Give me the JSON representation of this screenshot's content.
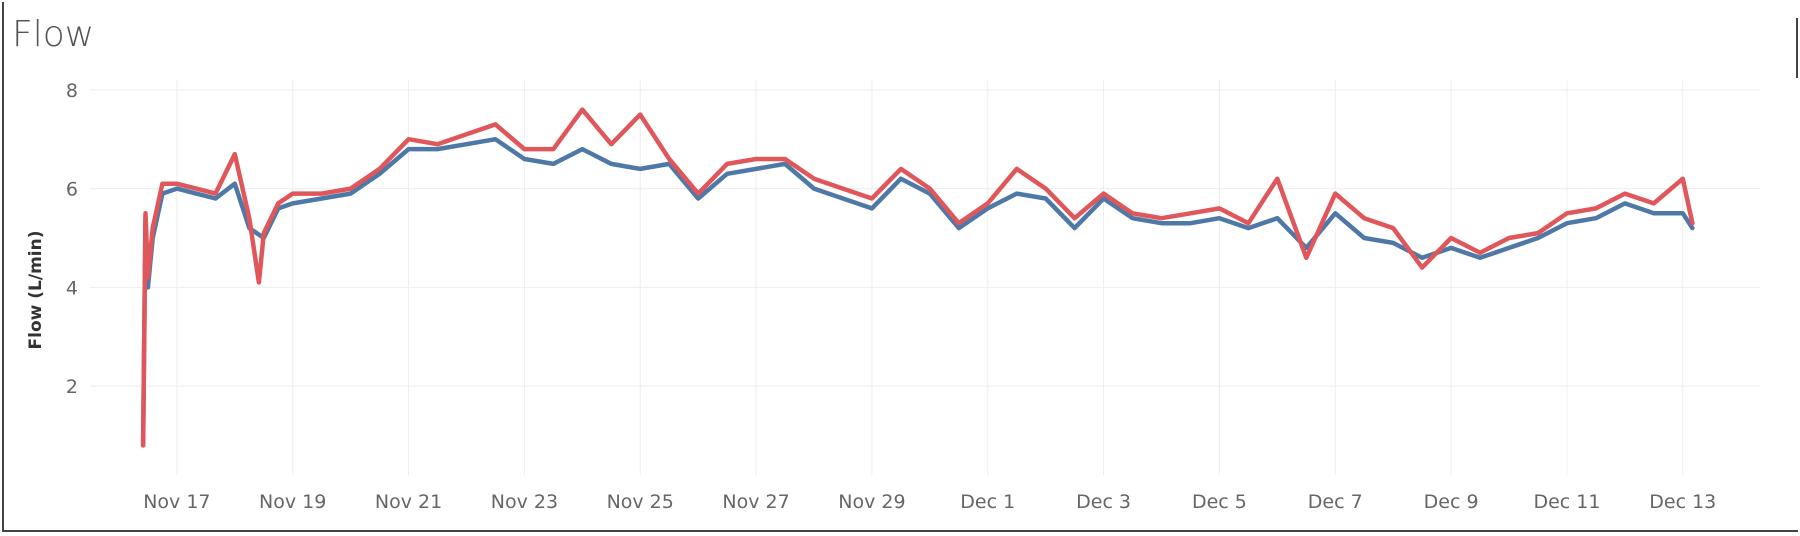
{
  "window": {
    "title": "Flow"
  },
  "colors": {
    "series_red": "#e0575b",
    "series_blue": "#4e79a7",
    "grid": "#eeeeee",
    "text": "#666666"
  },
  "chart_data": {
    "type": "line",
    "title": "Flow",
    "ylabel": "Flow (L/min)",
    "xlabel": "",
    "ylim": [
      0.2,
      8.2
    ],
    "yticks": [
      2,
      4,
      6,
      8
    ],
    "xlim": [
      "2023-11-15T12:00",
      "2023-12-14T08:00"
    ],
    "xticks": [
      {
        "date": "2023-11-17",
        "label": "Nov 17"
      },
      {
        "date": "2023-11-19",
        "label": "Nov 19"
      },
      {
        "date": "2023-11-21",
        "label": "Nov 21"
      },
      {
        "date": "2023-11-23",
        "label": "Nov 23"
      },
      {
        "date": "2023-11-25",
        "label": "Nov 25"
      },
      {
        "date": "2023-11-27",
        "label": "Nov 27"
      },
      {
        "date": "2023-11-29",
        "label": "Nov 29"
      },
      {
        "date": "2023-12-01",
        "label": "Dec 1"
      },
      {
        "date": "2023-12-03",
        "label": "Dec 3"
      },
      {
        "date": "2023-12-05",
        "label": "Dec 5"
      },
      {
        "date": "2023-12-07",
        "label": "Dec 7"
      },
      {
        "date": "2023-12-09",
        "label": "Dec 9"
      },
      {
        "date": "2023-12-11",
        "label": "Dec 11"
      },
      {
        "date": "2023-12-13",
        "label": "Dec 13"
      }
    ],
    "grid": true,
    "series": [
      {
        "color": "#4e79a7",
        "x": [
          "2023-11-16T10:00",
          "2023-11-16T11:00",
          "2023-11-16T12:00",
          "2023-11-16T14:00",
          "2023-11-16T18:00",
          "2023-11-17T00:00",
          "2023-11-17T08:00",
          "2023-11-17T16:00",
          "2023-11-18T00:00",
          "2023-11-18T06:00",
          "2023-11-18T12:00",
          "2023-11-18T18:00",
          "2023-11-19T00:00",
          "2023-11-19T12:00",
          "2023-11-20T00:00",
          "2023-11-20T12:00",
          "2023-11-21T00:00",
          "2023-11-21T12:00",
          "2023-11-22T00:00",
          "2023-11-22T12:00",
          "2023-11-23T00:00",
          "2023-11-23T12:00",
          "2023-11-24T00:00",
          "2023-11-24T12:00",
          "2023-11-25T00:00",
          "2023-11-25T12:00",
          "2023-11-26T00:00",
          "2023-11-26T12:00",
          "2023-11-27T00:00",
          "2023-11-27T12:00",
          "2023-11-28T00:00",
          "2023-11-28T12:00",
          "2023-11-29T00:00",
          "2023-11-29T12:00",
          "2023-11-30T00:00",
          "2023-11-30T12:00",
          "2023-12-01T00:00",
          "2023-12-01T12:00",
          "2023-12-02T00:00",
          "2023-12-02T12:00",
          "2023-12-03T00:00",
          "2023-12-03T12:00",
          "2023-12-04T00:00",
          "2023-12-04T12:00",
          "2023-12-05T00:00",
          "2023-12-05T12:00",
          "2023-12-06T00:00",
          "2023-12-06T12:00",
          "2023-12-07T00:00",
          "2023-12-07T12:00",
          "2023-12-08T00:00",
          "2023-12-08T12:00",
          "2023-12-09T00:00",
          "2023-12-09T12:00",
          "2023-12-10T00:00",
          "2023-12-10T12:00",
          "2023-12-11T00:00",
          "2023-12-11T12:00",
          "2023-12-12T00:00",
          "2023-12-12T12:00",
          "2023-12-13T00:00",
          "2023-12-13T04:00"
        ],
        "y": [
          0.8,
          5.4,
          4.0,
          5.0,
          5.9,
          6.0,
          5.9,
          5.8,
          6.1,
          5.2,
          5.0,
          5.6,
          5.7,
          5.8,
          5.9,
          6.3,
          6.8,
          6.8,
          6.9,
          7.0,
          6.6,
          6.5,
          6.8,
          6.5,
          6.4,
          6.5,
          5.8,
          6.3,
          6.4,
          6.5,
          6.0,
          5.8,
          5.6,
          6.2,
          5.9,
          5.2,
          5.6,
          5.9,
          5.8,
          5.2,
          5.8,
          5.4,
          5.3,
          5.3,
          5.4,
          5.2,
          5.4,
          4.8,
          5.5,
          5.0,
          4.9,
          4.6,
          4.8,
          4.6,
          4.8,
          5.0,
          5.3,
          5.4,
          5.7,
          5.5,
          5.5,
          5.2
        ]
      },
      {
        "color": "#e0575b",
        "x": [
          "2023-11-16T10:00",
          "2023-11-16T11:00",
          "2023-11-16T12:00",
          "2023-11-16T14:00",
          "2023-11-16T18:00",
          "2023-11-17T00:00",
          "2023-11-17T08:00",
          "2023-11-17T16:00",
          "2023-11-18T00:00",
          "2023-11-18T06:00",
          "2023-11-18T10:00",
          "2023-11-18T12:00",
          "2023-11-18T18:00",
          "2023-11-19T00:00",
          "2023-11-19T12:00",
          "2023-11-20T00:00",
          "2023-11-20T12:00",
          "2023-11-21T00:00",
          "2023-11-21T12:00",
          "2023-11-22T00:00",
          "2023-11-22T12:00",
          "2023-11-23T00:00",
          "2023-11-23T12:00",
          "2023-11-24T00:00",
          "2023-11-24T12:00",
          "2023-11-25T00:00",
          "2023-11-25T12:00",
          "2023-11-26T00:00",
          "2023-11-26T12:00",
          "2023-11-27T00:00",
          "2023-11-27T12:00",
          "2023-11-28T00:00",
          "2023-11-28T12:00",
          "2023-11-29T00:00",
          "2023-11-29T12:00",
          "2023-11-30T00:00",
          "2023-11-30T12:00",
          "2023-12-01T00:00",
          "2023-12-01T12:00",
          "2023-12-02T00:00",
          "2023-12-02T12:00",
          "2023-12-03T00:00",
          "2023-12-03T12:00",
          "2023-12-04T00:00",
          "2023-12-04T12:00",
          "2023-12-05T00:00",
          "2023-12-05T12:00",
          "2023-12-06T00:00",
          "2023-12-06T12:00",
          "2023-12-07T00:00",
          "2023-12-07T12:00",
          "2023-12-08T00:00",
          "2023-12-08T12:00",
          "2023-12-09T00:00",
          "2023-12-09T12:00",
          "2023-12-10T00:00",
          "2023-12-10T12:00",
          "2023-12-11T00:00",
          "2023-12-11T12:00",
          "2023-12-12T00:00",
          "2023-12-12T12:00",
          "2023-12-13T00:00",
          "2023-12-13T04:00"
        ],
        "y": [
          0.8,
          5.5,
          4.2,
          5.2,
          6.1,
          6.1,
          6.0,
          5.9,
          6.7,
          5.4,
          4.1,
          5.1,
          5.7,
          5.9,
          5.9,
          6.0,
          6.4,
          7.0,
          6.9,
          7.1,
          7.3,
          6.8,
          6.8,
          7.6,
          6.9,
          7.5,
          6.6,
          5.9,
          6.5,
          6.6,
          6.6,
          6.2,
          6.0,
          5.8,
          6.4,
          6.0,
          5.3,
          5.7,
          6.4,
          6.0,
          5.4,
          5.9,
          5.5,
          5.4,
          5.5,
          5.6,
          5.3,
          6.2,
          4.6,
          5.9,
          5.4,
          5.2,
          4.4,
          5.0,
          4.7,
          5.0,
          5.1,
          5.5,
          5.6,
          5.9,
          5.7,
          6.2,
          5.3
        ]
      }
    ]
  }
}
